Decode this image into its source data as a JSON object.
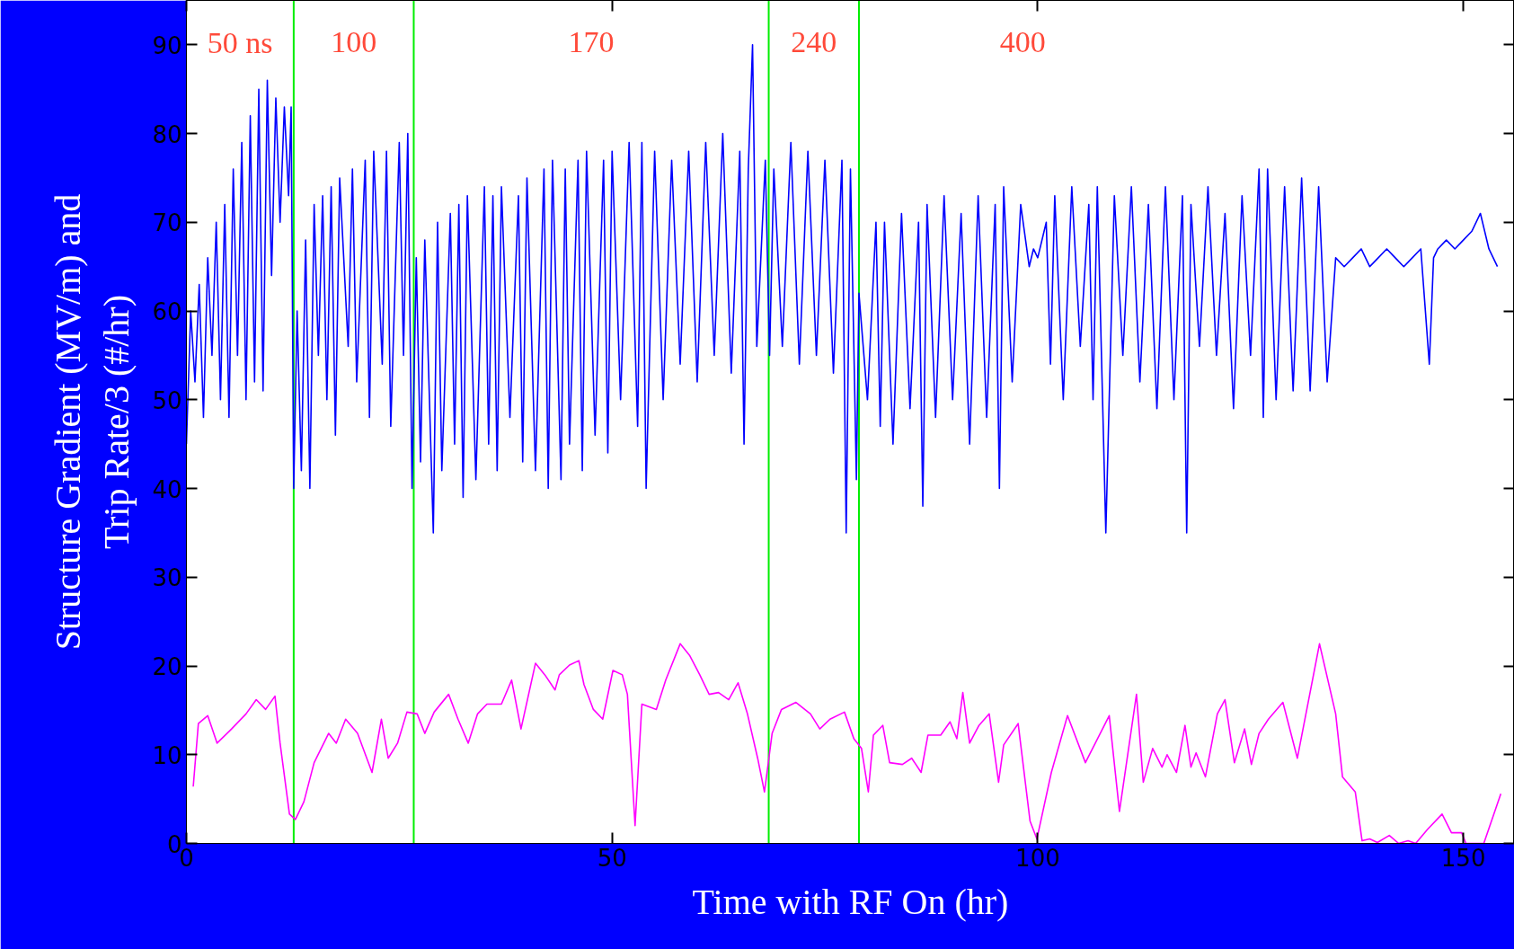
{
  "chart_data": {
    "type": "line",
    "xlabel": "Time with RF On (hr)",
    "ylabel": "Structure Gradient (MV/m) and\nTrip Rate/3 (#/hr)",
    "xlim": [
      0,
      156
    ],
    "ylim": [
      0,
      95
    ],
    "xticks": [
      0,
      50,
      100,
      150
    ],
    "yticks": [
      0,
      10,
      20,
      30,
      40,
      50,
      60,
      70,
      80,
      90
    ],
    "grid": false,
    "series": [
      {
        "color": "#0000ff",
        "x": [
          0,
          0.5,
          1,
          1.5,
          2,
          2.5,
          3,
          3.5,
          4,
          4.5,
          5,
          5.5,
          6,
          6.5,
          7,
          7.5,
          8,
          8.5,
          9,
          9.5,
          10,
          10.5,
          11,
          11.5,
          12,
          12.3,
          12.6,
          13,
          13.5,
          14,
          14.5,
          15,
          15.5,
          16,
          16.5,
          17,
          17.5,
          18,
          19,
          19.5,
          20,
          21,
          21.5,
          22,
          23,
          23.5,
          24,
          25,
          25.5,
          26,
          26.5,
          27,
          27.5,
          28,
          29,
          29.5,
          30,
          31,
          31.5,
          32,
          32.5,
          33,
          34,
          35,
          35.5,
          36,
          36.5,
          37,
          38,
          39,
          39.5,
          40,
          41,
          42,
          42.5,
          43,
          44,
          44.5,
          45,
          46,
          46.5,
          47,
          48,
          49,
          49.5,
          50,
          51,
          52,
          53,
          53.5,
          54,
          55,
          56,
          57,
          58,
          59,
          60,
          61,
          62,
          63,
          64,
          65,
          65.5,
          66,
          66.5,
          67,
          68,
          68.5,
          69,
          70,
          71,
          72,
          73,
          74,
          75,
          76,
          77,
          77.5,
          78,
          78.7,
          79,
          80,
          81,
          81.5,
          82,
          83,
          84,
          85,
          86,
          86.5,
          87,
          88,
          89,
          90,
          91,
          92,
          93,
          94,
          95,
          95.5,
          96,
          97,
          98,
          99,
          99.5,
          100,
          101,
          101.5,
          102,
          103,
          104,
          105,
          106,
          106.5,
          107,
          108,
          109,
          110,
          111,
          112,
          113,
          114,
          115,
          116,
          117,
          117.5,
          118,
          119,
          120,
          121,
          122,
          123,
          124,
          125,
          126,
          126.5,
          127,
          128,
          129,
          130,
          131,
          132,
          133,
          134,
          135,
          136,
          137,
          138,
          139,
          140,
          141,
          142,
          143,
          144,
          145,
          146,
          146.5,
          147,
          148,
          149,
          150,
          151,
          152,
          153,
          154
        ],
        "values": [
          45,
          60,
          52,
          63,
          48,
          66,
          55,
          70,
          50,
          72,
          48,
          76,
          55,
          79,
          50,
          82,
          52,
          85,
          51,
          86,
          64,
          84,
          70,
          83,
          73,
          83,
          40,
          60,
          42,
          68,
          40,
          72,
          55,
          73,
          50,
          74,
          46,
          75,
          56,
          76,
          52,
          77,
          48,
          78,
          54,
          78,
          47,
          79,
          55,
          80,
          40,
          66,
          43,
          68,
          35,
          70,
          42,
          71,
          45,
          72,
          39,
          73,
          41,
          74,
          45,
          73,
          42,
          74,
          48,
          73,
          43,
          75,
          42,
          76,
          40,
          77,
          41,
          76,
          45,
          77,
          42,
          78,
          46,
          77,
          44,
          78,
          50,
          79,
          47,
          79,
          40,
          78,
          50,
          77,
          54,
          78,
          52,
          79,
          55,
          80,
          53,
          78,
          45,
          76,
          90,
          56,
          77,
          55,
          76,
          56,
          79,
          54,
          78,
          55,
          77,
          53,
          77,
          35,
          76,
          41,
          62,
          50,
          70,
          47,
          70,
          45,
          71,
          49,
          70,
          38,
          72,
          48,
          73,
          50,
          71,
          45,
          73,
          48,
          72,
          40,
          74,
          52,
          72,
          65,
          67,
          66,
          70,
          54,
          73,
          50,
          74,
          56,
          72,
          50,
          74,
          35,
          73,
          55,
          74,
          52,
          72,
          49,
          74,
          50,
          73,
          35,
          72,
          56,
          74,
          55,
          71,
          49,
          73,
          55,
          76,
          48,
          76,
          50,
          74,
          51,
          75,
          51,
          74,
          52,
          66,
          65,
          66,
          67,
          65,
          66,
          67,
          66,
          65,
          66,
          67,
          54,
          66,
          67,
          68,
          67,
          68,
          69,
          71,
          67,
          65
        ]
      },
      {
        "color": "#ff00ff",
        "x": [
          0.8,
          1.4,
          2.5,
          3.6,
          5.3,
          7.0,
          8.2,
          9.3,
          10.4,
          11.0,
          12.1,
          12.8,
          13.8,
          15.0,
          16.7,
          17.6,
          18.7,
          20.1,
          21.8,
          22.9,
          23.7,
          24.8,
          25.9,
          27.1,
          28.0,
          29.1,
          30.8,
          31.9,
          33.1,
          34.2,
          35.3,
          37.0,
          38.2,
          39.3,
          41.0,
          42.1,
          43.3,
          43.8,
          45.0,
          46.1,
          46.7,
          47.8,
          48.9,
          50.1,
          51.2,
          51.8,
          52.7,
          53.5,
          55.2,
          56.3,
          58.0,
          59.1,
          60.3,
          61.4,
          62.5,
          63.7,
          64.8,
          65.9,
          67.1,
          67.9,
          68.8,
          69.9,
          71.6,
          73.3,
          74.4,
          75.6,
          77.3,
          78.4,
          79.3,
          80.1,
          80.7,
          81.8,
          82.6,
          84.1,
          85.2,
          86.3,
          87.1,
          88.6,
          89.7,
          90.5,
          91.2,
          92.0,
          93.1,
          94.3,
          95.4,
          96.0,
          97.7,
          99.1,
          99.9,
          101.6,
          103.5,
          105.6,
          108.4,
          109.6,
          111.6,
          112.4,
          113.5,
          114.6,
          115.2,
          116.3,
          117.3,
          118.0,
          118.6,
          119.7,
          121.1,
          122.0,
          123.1,
          124.3,
          125.1,
          126.0,
          127.1,
          128.8,
          130.5,
          133.1,
          135.0,
          135.8,
          137.3,
          138.1,
          139.0,
          139.9,
          141.3,
          142.4,
          143.5,
          144.4,
          145.8,
          147.5,
          148.6,
          149.8,
          150.3,
          152.4,
          154.4
        ],
        "values": [
          6.4,
          13.5,
          14.4,
          11.3,
          12.9,
          14.6,
          16.2,
          15.1,
          16.6,
          11.3,
          3.3,
          2.7,
          4.7,
          9.1,
          12.4,
          11.3,
          14.0,
          12.4,
          8.0,
          14.0,
          9.6,
          11.3,
          14.8,
          14.6,
          12.4,
          14.8,
          16.8,
          14.0,
          11.3,
          14.6,
          15.7,
          15.7,
          18.4,
          12.9,
          20.3,
          19.0,
          17.3,
          19.0,
          20.1,
          20.6,
          17.9,
          15.1,
          14.0,
          19.5,
          19.0,
          16.8,
          2.0,
          15.7,
          15.1,
          18.4,
          22.5,
          21.2,
          19.0,
          16.8,
          17.0,
          16.2,
          18.1,
          14.6,
          9.6,
          5.8,
          12.4,
          15.1,
          15.9,
          14.6,
          12.9,
          14.0,
          14.8,
          11.8,
          10.7,
          5.8,
          12.2,
          13.3,
          9.1,
          8.9,
          9.6,
          8.0,
          12.2,
          12.2,
          13.7,
          11.8,
          17.0,
          11.3,
          13.3,
          14.6,
          6.9,
          11.1,
          13.5,
          2.5,
          0.5,
          8.0,
          14.4,
          9.1,
          14.4,
          3.6,
          16.8,
          6.9,
          10.7,
          8.6,
          10.0,
          8.0,
          13.3,
          8.6,
          10.2,
          7.5,
          14.6,
          16.2,
          9.1,
          12.9,
          8.9,
          12.4,
          14.0,
          15.9,
          9.6,
          22.5,
          14.6,
          7.5,
          5.8,
          0.3,
          0.5,
          0.1,
          0.9,
          0,
          0.3,
          0,
          1.6,
          3.3,
          1.2,
          1.2,
          0,
          0,
          5.6
        ]
      }
    ],
    "ref_lines": [
      {
        "axis": "x",
        "value": 12.6,
        "color": "#00ee00"
      },
      {
        "axis": "x",
        "value": 26.7,
        "color": "#00ee00"
      },
      {
        "axis": "x",
        "value": 68.4,
        "color": "#00ee00"
      },
      {
        "axis": "x",
        "value": 79.0,
        "color": "#00ee00"
      }
    ],
    "annotations": [
      "50 ns",
      "100",
      "170",
      "240",
      "400"
    ]
  }
}
